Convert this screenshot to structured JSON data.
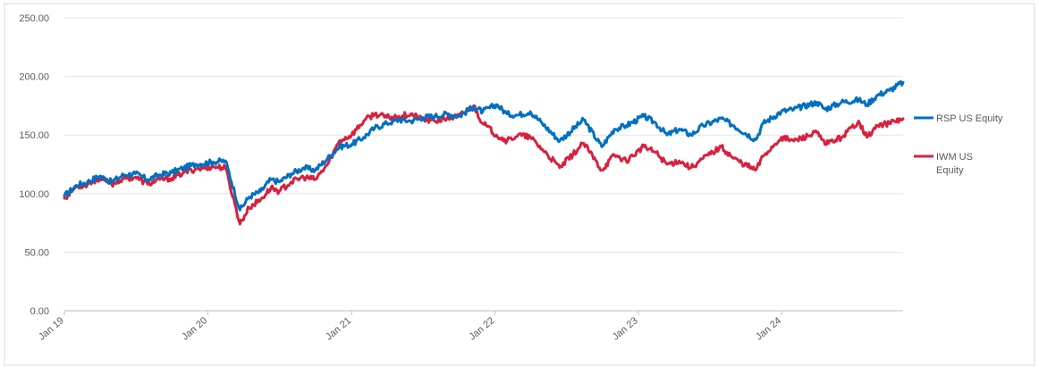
{
  "chart_data": {
    "type": "line",
    "title": "",
    "xlabel": "",
    "ylabel": "",
    "ylim": [
      0,
      250
    ],
    "xlim": [
      "2019-01-01",
      "2024-11-05"
    ],
    "y_ticks": [
      "0.00",
      "50.00",
      "100.00",
      "150.00",
      "200.00",
      "250.00"
    ],
    "x_ticks": [
      {
        "label": "Jan 19",
        "date": "2019-01-01"
      },
      {
        "label": "Jan 20",
        "date": "2020-01-01"
      },
      {
        "label": "Jan 21",
        "date": "2021-01-01"
      },
      {
        "label": "Jan 22",
        "date": "2022-01-01"
      },
      {
        "label": "Jan 23",
        "date": "2023-01-01"
      },
      {
        "label": "Jan 24",
        "date": "2024-01-01"
      }
    ],
    "grid": true,
    "legend_position": "right",
    "series": [
      {
        "name": "RSP US Equity",
        "color": "#0070C0",
        "points": [
          [
            "2019-01-01",
            98
          ],
          [
            "2019-02-01",
            107
          ],
          [
            "2019-03-01",
            110
          ],
          [
            "2019-04-01",
            115
          ],
          [
            "2019-05-01",
            110
          ],
          [
            "2019-06-01",
            116
          ],
          [
            "2019-07-01",
            117
          ],
          [
            "2019-08-01",
            112
          ],
          [
            "2019-09-01",
            116
          ],
          [
            "2019-10-01",
            118
          ],
          [
            "2019-11-01",
            122
          ],
          [
            "2019-12-01",
            125
          ],
          [
            "2020-01-15",
            127
          ],
          [
            "2020-02-15",
            128
          ],
          [
            "2020-03-23",
            86
          ],
          [
            "2020-04-15",
            97
          ],
          [
            "2020-05-15",
            102
          ],
          [
            "2020-06-10",
            112
          ],
          [
            "2020-07-01",
            110
          ],
          [
            "2020-08-01",
            117
          ],
          [
            "2020-09-01",
            122
          ],
          [
            "2020-10-01",
            120
          ],
          [
            "2020-11-01",
            130
          ],
          [
            "2020-12-01",
            140
          ],
          [
            "2021-01-01",
            142
          ],
          [
            "2021-02-01",
            148
          ],
          [
            "2021-03-01",
            156
          ],
          [
            "2021-04-01",
            160
          ],
          [
            "2021-05-01",
            163
          ],
          [
            "2021-06-01",
            162
          ],
          [
            "2021-07-01",
            165
          ],
          [
            "2021-08-01",
            166
          ],
          [
            "2021-09-01",
            168
          ],
          [
            "2021-10-01",
            166
          ],
          [
            "2021-11-08",
            174
          ],
          [
            "2021-12-01",
            170
          ],
          [
            "2022-01-05",
            176
          ],
          [
            "2022-02-01",
            168
          ],
          [
            "2022-03-01",
            167
          ],
          [
            "2022-04-01",
            170
          ],
          [
            "2022-05-01",
            160
          ],
          [
            "2022-06-15",
            145
          ],
          [
            "2022-08-15",
            163
          ],
          [
            "2022-09-30",
            140
          ],
          [
            "2022-11-01",
            155
          ],
          [
            "2022-12-01",
            158
          ],
          [
            "2023-01-15",
            166
          ],
          [
            "2023-02-15",
            160
          ],
          [
            "2023-03-15",
            150
          ],
          [
            "2023-04-15",
            155
          ],
          [
            "2023-05-15",
            150
          ],
          [
            "2023-06-15",
            158
          ],
          [
            "2023-07-31",
            164
          ],
          [
            "2023-09-01",
            158
          ],
          [
            "2023-10-27",
            146
          ],
          [
            "2023-11-15",
            160
          ],
          [
            "2023-12-31",
            170
          ],
          [
            "2024-02-01",
            172
          ],
          [
            "2024-03-31",
            178
          ],
          [
            "2024-04-20",
            172
          ],
          [
            "2024-06-01",
            178
          ],
          [
            "2024-07-15",
            180
          ],
          [
            "2024-08-05",
            176
          ],
          [
            "2024-09-01",
            184
          ],
          [
            "2024-10-01",
            188
          ],
          [
            "2024-11-05",
            195
          ]
        ]
      },
      {
        "name": "IWM US Equity",
        "color": "#D7213E",
        "points": [
          [
            "2019-01-01",
            96
          ],
          [
            "2019-02-01",
            106
          ],
          [
            "2019-03-01",
            108
          ],
          [
            "2019-04-01",
            113
          ],
          [
            "2019-05-01",
            108
          ],
          [
            "2019-06-01",
            113
          ],
          [
            "2019-07-01",
            114
          ],
          [
            "2019-08-01",
            108
          ],
          [
            "2019-09-01",
            112
          ],
          [
            "2019-10-01",
            113
          ],
          [
            "2019-11-01",
            118
          ],
          [
            "2019-12-01",
            121
          ],
          [
            "2020-01-15",
            123
          ],
          [
            "2020-02-15",
            122
          ],
          [
            "2020-03-23",
            74
          ],
          [
            "2020-04-15",
            88
          ],
          [
            "2020-05-15",
            95
          ],
          [
            "2020-06-10",
            105
          ],
          [
            "2020-07-01",
            102
          ],
          [
            "2020-08-01",
            110
          ],
          [
            "2020-09-01",
            114
          ],
          [
            "2020-10-01",
            112
          ],
          [
            "2020-11-01",
            125
          ],
          [
            "2020-12-01",
            145
          ],
          [
            "2021-01-01",
            150
          ],
          [
            "2021-02-01",
            162
          ],
          [
            "2021-03-01",
            168
          ],
          [
            "2021-04-01",
            165
          ],
          [
            "2021-05-01",
            166
          ],
          [
            "2021-06-01",
            168
          ],
          [
            "2021-07-01",
            163
          ],
          [
            "2021-08-01",
            162
          ],
          [
            "2021-09-01",
            164
          ],
          [
            "2021-10-01",
            166
          ],
          [
            "2021-11-08",
            175
          ],
          [
            "2021-12-01",
            160
          ],
          [
            "2022-01-05",
            150
          ],
          [
            "2022-02-01",
            145
          ],
          [
            "2022-03-01",
            150
          ],
          [
            "2022-04-01",
            148
          ],
          [
            "2022-05-01",
            138
          ],
          [
            "2022-06-15",
            122
          ],
          [
            "2022-08-15",
            143
          ],
          [
            "2022-09-30",
            120
          ],
          [
            "2022-11-01",
            133
          ],
          [
            "2022-12-01",
            128
          ],
          [
            "2023-01-15",
            140
          ],
          [
            "2023-02-15",
            135
          ],
          [
            "2023-03-15",
            125
          ],
          [
            "2023-04-15",
            128
          ],
          [
            "2023-05-15",
            122
          ],
          [
            "2023-06-15",
            130
          ],
          [
            "2023-07-31",
            140
          ],
          [
            "2023-09-01",
            130
          ],
          [
            "2023-10-27",
            120
          ],
          [
            "2023-11-15",
            132
          ],
          [
            "2023-12-31",
            148
          ],
          [
            "2024-02-01",
            145
          ],
          [
            "2024-03-31",
            152
          ],
          [
            "2024-04-20",
            142
          ],
          [
            "2024-06-01",
            148
          ],
          [
            "2024-07-15",
            162
          ],
          [
            "2024-08-05",
            148
          ],
          [
            "2024-09-01",
            158
          ],
          [
            "2024-10-01",
            160
          ],
          [
            "2024-11-05",
            164
          ]
        ]
      }
    ],
    "legend": [
      {
        "series": "RSP US Equity",
        "lines": [
          "RSP US Equity"
        ]
      },
      {
        "series": "IWM US Equity",
        "lines": [
          "IWM US",
          "Equity"
        ]
      }
    ]
  }
}
